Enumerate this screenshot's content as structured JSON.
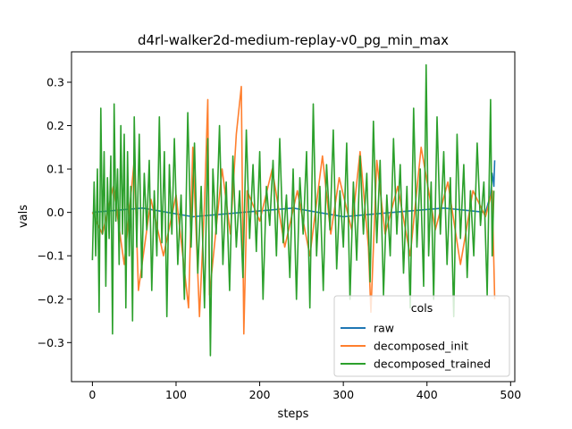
{
  "chart_data": {
    "type": "line",
    "title": "d4rl-walker2d-medium-replay-v0_pg_min_max",
    "xlabel": "steps",
    "ylabel": "vals",
    "xlim": [
      -25,
      505
    ],
    "ylim": [
      -0.39,
      0.37
    ],
    "xticks": [
      "0",
      "100",
      "200",
      "300",
      "400",
      "500"
    ],
    "yticks": [
      "−0.3",
      "−0.2",
      "−0.1",
      "0.0",
      "0.1",
      "0.2",
      "0.3"
    ],
    "grid": false,
    "legend": {
      "title": "cols",
      "placement": "lower-right"
    },
    "series": [
      {
        "name": "raw",
        "color": "#1f77b4",
        "x": [
          0,
          60,
          120,
          180,
          240,
          300,
          360,
          420,
          470,
          476,
          478,
          480,
          481
        ],
        "y": [
          0.0,
          0.01,
          -0.01,
          0.0,
          0.01,
          -0.01,
          0.0,
          0.01,
          0.0,
          0.04,
          0.09,
          0.06,
          0.12
        ]
      },
      {
        "name": "decomposed_init",
        "color": "#ff7f2e",
        "x": [
          0,
          12,
          25,
          38,
          50,
          55,
          70,
          85,
          100,
          115,
          120,
          128,
          134,
          138,
          140,
          155,
          165,
          172,
          178,
          181,
          185,
          200,
          215,
          230,
          245,
          260,
          275,
          285,
          295,
          310,
          320,
          330,
          333,
          340,
          350,
          365,
          380,
          393,
          410,
          425,
          440,
          455,
          470,
          478,
          481
        ],
        "y": [
          0.0,
          -0.05,
          0.06,
          -0.12,
          0.12,
          -0.18,
          0.03,
          -0.1,
          0.04,
          -0.22,
          0.15,
          -0.24,
          0.02,
          0.26,
          -0.19,
          0.1,
          -0.05,
          0.18,
          0.29,
          -0.28,
          0.05,
          -0.02,
          0.1,
          -0.08,
          0.05,
          -0.1,
          0.13,
          -0.05,
          0.08,
          -0.04,
          0.14,
          -0.08,
          -0.23,
          0.12,
          -0.05,
          0.06,
          -0.1,
          0.15,
          -0.04,
          0.07,
          -0.12,
          0.05,
          -0.01,
          0.05,
          -0.2
        ]
      },
      {
        "name": "decomposed_trained",
        "color": "#2ca02c",
        "x": [
          0,
          2,
          4,
          6,
          8,
          10,
          12,
          14,
          16,
          18,
          20,
          22,
          24,
          26,
          28,
          30,
          32,
          34,
          36,
          38,
          40,
          42,
          44,
          46,
          48,
          50,
          53,
          56,
          59,
          62,
          65,
          68,
          71,
          74,
          77,
          80,
          83,
          86,
          89,
          92,
          95,
          98,
          102,
          106,
          110,
          114,
          118,
          122,
          126,
          130,
          134,
          138,
          141,
          144,
          148,
          152,
          156,
          160,
          164,
          168,
          172,
          176,
          180,
          184,
          188,
          192,
          196,
          200,
          204,
          208,
          212,
          216,
          220,
          224,
          228,
          232,
          236,
          240,
          244,
          248,
          252,
          256,
          260,
          264,
          268,
          272,
          276,
          280,
          284,
          288,
          292,
          296,
          300,
          304,
          308,
          312,
          316,
          320,
          324,
          328,
          332,
          336,
          340,
          344,
          348,
          352,
          356,
          360,
          364,
          368,
          372,
          376,
          380,
          384,
          388,
          392,
          396,
          399,
          402,
          405,
          408,
          412,
          416,
          420,
          424,
          428,
          432,
          436,
          440,
          444,
          448,
          452,
          456,
          460,
          464,
          468,
          472,
          476,
          478,
          480
        ],
        "y": [
          -0.11,
          0.07,
          -0.1,
          0.1,
          -0.23,
          0.24,
          -0.05,
          0.14,
          -0.17,
          0.08,
          -0.06,
          0.13,
          -0.28,
          0.25,
          -0.02,
          0.1,
          -0.12,
          0.2,
          -0.05,
          0.18,
          -0.22,
          0.14,
          -0.1,
          0.06,
          -0.25,
          0.22,
          -0.08,
          0.18,
          -0.15,
          0.09,
          -0.04,
          0.12,
          -0.18,
          0.05,
          -0.1,
          0.22,
          -0.07,
          0.14,
          -0.24,
          0.11,
          -0.05,
          0.17,
          -0.12,
          0.04,
          -0.2,
          0.23,
          -0.08,
          0.16,
          -0.14,
          0.06,
          -0.22,
          0.17,
          -0.33,
          0.1,
          -0.05,
          0.2,
          -0.12,
          0.07,
          -0.18,
          0.13,
          -0.08,
          0.05,
          -0.15,
          0.19,
          -0.06,
          0.11,
          -0.09,
          0.14,
          -0.2,
          0.06,
          -0.03,
          0.12,
          -0.1,
          0.17,
          -0.07,
          0.04,
          -0.15,
          0.1,
          -0.2,
          0.08,
          -0.05,
          0.14,
          -0.22,
          0.25,
          -0.1,
          0.06,
          -0.18,
          0.11,
          -0.04,
          0.19,
          -0.13,
          0.05,
          -0.08,
          0.16,
          -0.2,
          0.07,
          -0.11,
          0.13,
          -0.05,
          0.09,
          -0.16,
          0.21,
          -0.07,
          0.12,
          -0.19,
          0.04,
          -0.1,
          0.17,
          -0.05,
          0.11,
          -0.14,
          0.06,
          -0.22,
          0.24,
          -0.08,
          0.1,
          -0.17,
          0.34,
          -0.1,
          0.07,
          -0.2,
          0.22,
          -0.05,
          0.14,
          -0.12,
          0.08,
          -0.24,
          0.18,
          -0.06,
          0.11,
          -0.15,
          0.05,
          -0.1,
          0.16,
          -0.03,
          0.07,
          -0.19,
          0.26,
          -0.1,
          0.05
        ]
      }
    ]
  }
}
